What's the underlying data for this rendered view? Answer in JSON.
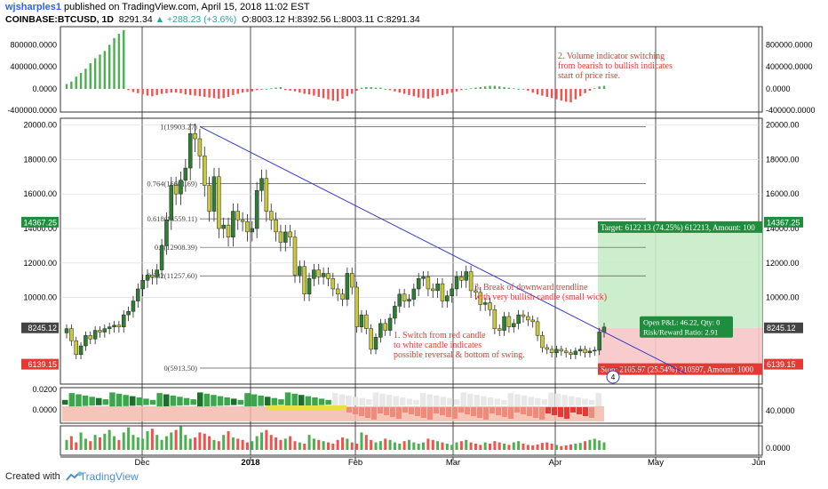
{
  "header": {
    "author": "wjsharples1",
    "published_text": "published on TradingView.com, April 15, 2018 11:02 EST",
    "symbol": "COINBASE:BTCUSD, 1D",
    "last": "8291.34",
    "change": "+288.23 (+3.6%)",
    "ohlc": "O:8003.12 H:8392.56 L:8003.11 C:8291.34"
  },
  "footer": {
    "created_with": "Created with",
    "brand": "TradingView"
  },
  "colors": {
    "bull": "#2e7d32",
    "bear": "#222222",
    "green_bar": "#4caf50",
    "red_bar": "#ef5350",
    "trend": "#3a3ac8",
    "note": "#e53935",
    "target_bg": "#c8ecc8",
    "stop_bg": "#f7c6c6",
    "fib": "#555555"
  },
  "chart_data": {
    "type": "candlestick",
    "x_tick_labels": [
      "Dec",
      "2018",
      "Feb",
      "Mar",
      "Apr",
      "May",
      "Jun"
    ],
    "price_axis": {
      "ticks": [
        "20000.00",
        "18000.00",
        "16000.00",
        "14000.00",
        "12000.00",
        "10000.00"
      ],
      "ylim": [
        5000,
        20600
      ],
      "markers": [
        {
          "label": "14367.25",
          "side": "both",
          "color": "#1e8e3e"
        },
        {
          "label": "8291.34",
          "side": "left",
          "color": "none"
        },
        {
          "label": "8245.12",
          "side": "both",
          "color": "#444444"
        },
        {
          "label": "6139.15",
          "side": "both",
          "color": "#e53935"
        }
      ]
    },
    "osc1_axis": {
      "ticks": [
        "800000.0000",
        "400000.0000",
        "0.0000",
        "-400000.0000"
      ]
    },
    "osc2_axis": {
      "left_ticks": [
        "0.0200",
        "0.0000"
      ],
      "right_ticks": [
        "40.0000"
      ]
    },
    "osc3_axis": {
      "right_ticks": [
        "0.0000"
      ]
    },
    "fib_levels": [
      {
        "label": "1(19903.27)",
        "value": 19903
      },
      {
        "label": "0.764(16601.69)",
        "value": 16602
      },
      {
        "label": "0.618(14559.11)",
        "value": 14559
      },
      {
        "label": "0.5(12908.39)",
        "value": 12908
      },
      {
        "label": "0.382(11257.60)",
        "value": 11258
      },
      {
        "label": "0(5913.50)",
        "value": 5914
      }
    ],
    "trendline": {
      "from": 19903,
      "to": 5600
    },
    "position": {
      "target_label": "Target: 6122.13 (74.25%) 612213, Amount: 100",
      "stop_label": "Stop: 2105.97 (25.54%) 210597, Amount: 1000",
      "pnl_label": "Open P&L: 46.22, Qty: 0",
      "rr_label": "Risk/Reward Ratio: 2.91",
      "entry": 8245,
      "target": 14367,
      "stop": 6139
    },
    "annotations": [
      {
        "text": [
          "2. Volume indicator switching",
          " from bearish to bullish indicates",
          "start of price rise."
        ]
      },
      {
        "text": [
          "3. Break of downward trendline",
          "with very bullish candle (small wick)"
        ]
      },
      {
        "text": [
          "1. Switch from red candle",
          "  to white candle indicates",
          "possible reversal & bottom of swing."
        ]
      }
    ],
    "closes": [
      8200,
      7500,
      6700,
      7200,
      7800,
      7600,
      8100,
      8000,
      8200,
      8300,
      8400,
      8300,
      9000,
      9200,
      9800,
      10500,
      11000,
      11300,
      11200,
      11600,
      13000,
      14500,
      16500,
      16000,
      16800,
      17500,
      19500,
      19200,
      18200,
      16500,
      15000,
      17000,
      14000,
      14200,
      13500,
      15000,
      14500,
      14400,
      13800,
      14000,
      16200,
      16900,
      15000,
      14500,
      13800,
      13200,
      13800,
      13500,
      11300,
      11800,
      10200,
      11100,
      11600,
      11200,
      11400,
      11100,
      10500,
      10200,
      9900,
      11400,
      10600,
      8300,
      9000,
      8200,
      7000,
      7700,
      8500,
      8100,
      8800,
      9500,
      10200,
      9800,
      9900,
      10500,
      11100,
      11200,
      10500,
      10400,
      10800,
      9800,
      10100,
      10500,
      11200,
      11000,
      11500,
      10400,
      10300,
      9600,
      9700,
      9300,
      8200,
      8100,
      8900,
      8300,
      8500,
      9000,
      8900,
      8700,
      8600,
      7800,
      7100,
      7000,
      6800,
      7000,
      6900,
      6800,
      6700,
      6900,
      7000,
      6800,
      6900,
      6950,
      8003,
      8291
    ],
    "oscillator1": [
      80,
      120,
      200,
      260,
      330,
      420,
      500,
      560,
      620,
      720,
      830,
      900,
      960,
      -20,
      -50,
      -70,
      -90,
      -110,
      -120,
      -100,
      -80,
      -70,
      -60,
      -60,
      -70,
      -90,
      -100,
      -110,
      -120,
      -130,
      -140,
      -150,
      -160,
      -150,
      -130,
      -100,
      -80,
      -60,
      -50,
      -40,
      -20,
      -10,
      0,
      10,
      20,
      30,
      -20,
      -30,
      -40,
      -60,
      -80,
      -90,
      -110,
      -130,
      -150,
      -170,
      -190,
      -200,
      -160,
      -120,
      -80,
      -30,
      20,
      30,
      30,
      20,
      20,
      0,
      -20,
      -40,
      -60,
      -80,
      -100,
      -120,
      -140,
      -150,
      -160,
      -140,
      -120,
      -100,
      -80,
      -60,
      -40,
      -20,
      0,
      10,
      20,
      30,
      40,
      50,
      50,
      40,
      30,
      20,
      10,
      0,
      -10,
      -30,
      -60,
      -90,
      -110,
      -130,
      -150,
      -170,
      -190,
      -210,
      -220,
      -170,
      -120,
      -70,
      -30,
      10,
      40,
      50
    ],
    "volume": [
      40,
      55,
      30,
      70,
      45,
      35,
      60,
      50,
      65,
      80,
      55,
      40,
      70,
      90,
      60,
      50,
      45,
      75,
      85,
      60,
      40,
      55,
      70,
      80,
      95,
      60,
      45,
      50,
      70,
      65,
      55,
      40,
      35,
      60,
      75,
      50,
      45,
      40,
      30,
      35,
      55,
      70,
      80,
      60,
      50,
      40,
      45,
      55,
      35,
      30,
      25,
      60,
      45,
      40,
      35,
      30,
      25,
      40,
      50,
      45,
      30,
      25,
      70,
      60,
      40,
      30,
      35,
      45,
      40,
      30,
      25,
      35,
      40,
      30,
      25,
      30,
      45,
      40,
      35,
      30,
      25,
      20,
      30,
      35,
      40,
      30,
      25,
      20,
      30,
      25,
      35,
      30,
      25,
      20,
      30,
      35,
      25,
      20,
      18,
      22,
      28,
      30,
      25,
      20,
      15,
      18,
      22,
      25,
      28,
      35,
      40,
      45,
      38,
      30
    ]
  }
}
